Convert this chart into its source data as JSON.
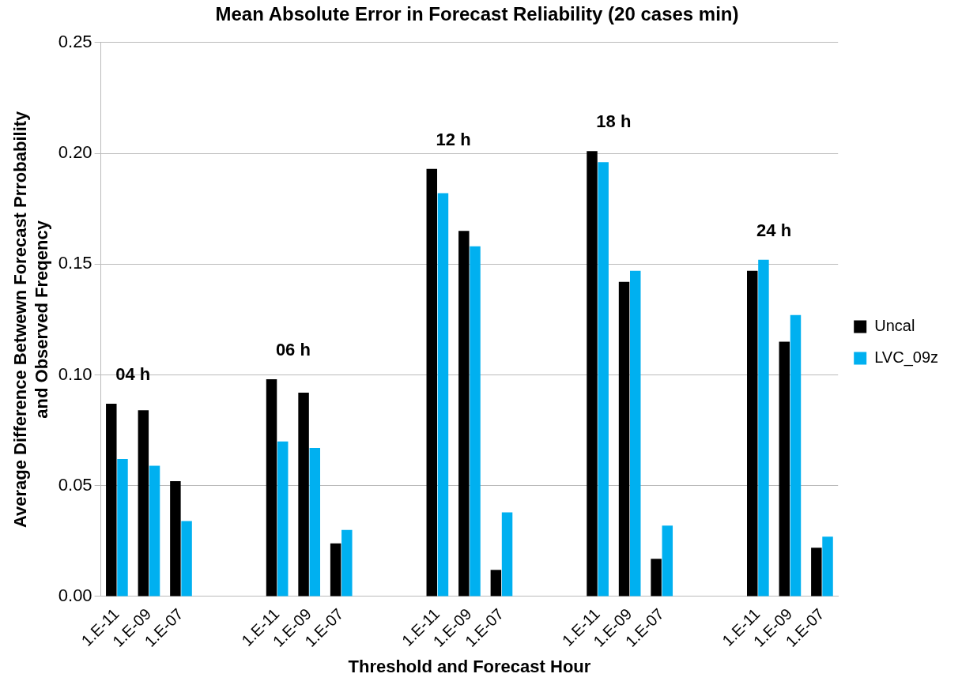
{
  "chart_data": {
    "type": "bar",
    "title": "Mean Absolute Error in Forecast Reliability (20 cases min)",
    "xlabel": "Threshold and Forecast Hour",
    "ylabel": "Average Difference Betwewn Forecast Prrobability\nand Observed Freqency",
    "categories": [
      "1.E-11",
      "1.E-09",
      "1.E-07",
      null,
      null,
      "1.E-11",
      "1.E-09",
      "1.E-07",
      null,
      null,
      "1.E-11",
      "1.E-09",
      "1.E-07",
      null,
      null,
      "1.E-11",
      "1.E-09",
      "1.E-07",
      null,
      null,
      "1.E-11",
      "1.E-09",
      "1.E-07"
    ],
    "series": [
      {
        "name": "Uncal",
        "color": "#000000",
        "values": [
          0.087,
          0.084,
          0.052,
          null,
          null,
          0.098,
          0.092,
          0.024,
          null,
          null,
          0.193,
          0.165,
          0.012,
          null,
          null,
          0.201,
          0.142,
          0.017,
          null,
          null,
          0.147,
          0.115,
          0.022
        ]
      },
      {
        "name": "LVC_09z",
        "color": "#00b0f0",
        "values": [
          0.062,
          0.059,
          0.034,
          null,
          null,
          0.07,
          0.067,
          0.03,
          null,
          null,
          0.182,
          0.158,
          0.038,
          null,
          null,
          0.196,
          0.147,
          0.032,
          null,
          null,
          0.152,
          0.127,
          0.027
        ]
      }
    ],
    "annotations": [
      "04 h",
      "06 h",
      "12 h",
      "18 h",
      "24 h"
    ],
    "ylim": [
      0,
      0.25
    ],
    "yticks": [
      {
        "value": 0,
        "label": "0.00"
      },
      {
        "value": 0.05,
        "label": "0.05"
      },
      {
        "value": 0.1,
        "label": "0.10"
      },
      {
        "value": 0.15,
        "label": "0.15"
      },
      {
        "value": 0.2,
        "label": "0.20"
      },
      {
        "value": 0.25,
        "label": "0.25"
      }
    ],
    "grid": "y",
    "legend": "right"
  }
}
